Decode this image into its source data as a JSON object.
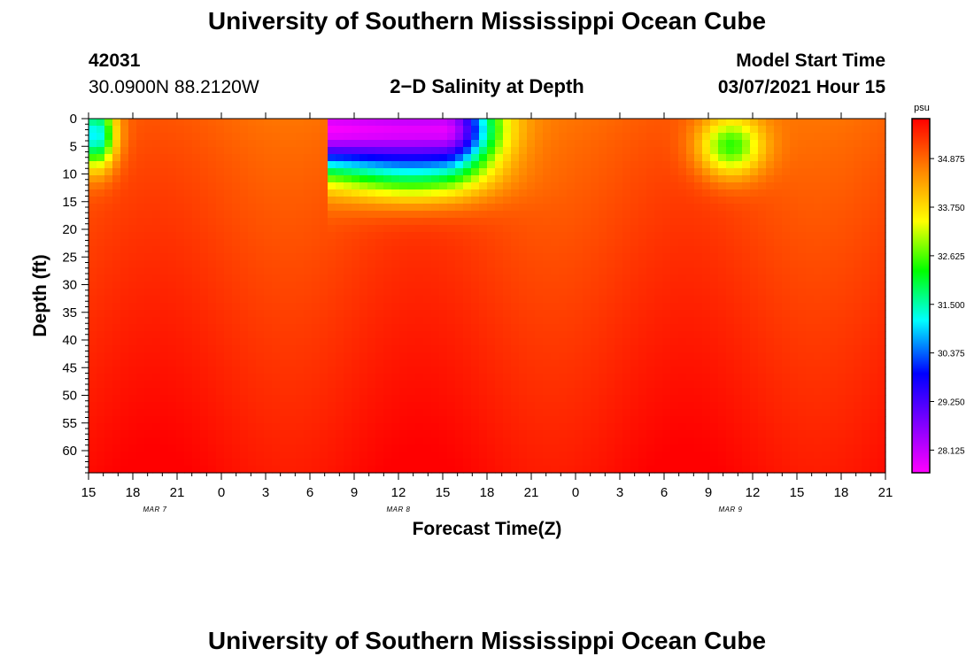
{
  "page": {
    "title_top": "University of Southern Mississippi Ocean Cube",
    "title_bottom": "University of Southern Mississippi Ocean Cube",
    "station_id": "42031",
    "station_coords": "30.0900N 88.2120W",
    "plot_title": "2−D Salinity at Depth",
    "model_start_label": "Model Start Time",
    "model_start_value": "03/07/2021 Hour 15"
  },
  "chart_data": {
    "type": "heatmap",
    "title": "2−D Salinity at Depth",
    "xlabel": "Forecast Time(Z)",
    "ylabel": "Depth (ft)",
    "x_range_hours": [
      0,
      54
    ],
    "y_range_ft": [
      0,
      64
    ],
    "x_tick_labels": [
      "15",
      "18",
      "21",
      "0",
      "3",
      "6",
      "9",
      "12",
      "15",
      "18",
      "21",
      "0",
      "3",
      "6",
      "9",
      "12",
      "15",
      "18",
      "21"
    ],
    "y_tick_labels": [
      "0",
      "5",
      "10",
      "15",
      "20",
      "25",
      "30",
      "35",
      "40",
      "45",
      "50",
      "55",
      "60"
    ],
    "date_labels": [
      {
        "text": "MAR 7",
        "x_hours": 4.5
      },
      {
        "text": "MAR 8",
        "x_hours": 21
      },
      {
        "text": "MAR 9",
        "x_hours": 43.5
      }
    ],
    "colorbar": {
      "unit": "psu",
      "min": 27.6,
      "max": 35.8,
      "tick_values": [
        34.875,
        33.75,
        32.625,
        31.5,
        30.375,
        29.25,
        28.125
      ],
      "tick_labels": [
        "34.875",
        "33.750",
        "32.625",
        "31.500",
        "30.375",
        "29.250",
        "28.125"
      ]
    },
    "field_features": [
      {
        "name": "background",
        "surface_psu": 34.9,
        "bottom_psu": 35.7
      },
      {
        "name": "fresh-lens-start",
        "x_hours": 0.5,
        "depth_ft": 3,
        "min_psu": 31.0
      },
      {
        "name": "fresh-plume-mar8",
        "x_hours_range": [
          16.3,
          28
        ],
        "depth_ft": 2,
        "min_psu": 27.9
      },
      {
        "name": "fresh-patch-mar9",
        "x_hours": 43.5,
        "depth_ft": 5,
        "min_psu": 32.4
      }
    ]
  }
}
